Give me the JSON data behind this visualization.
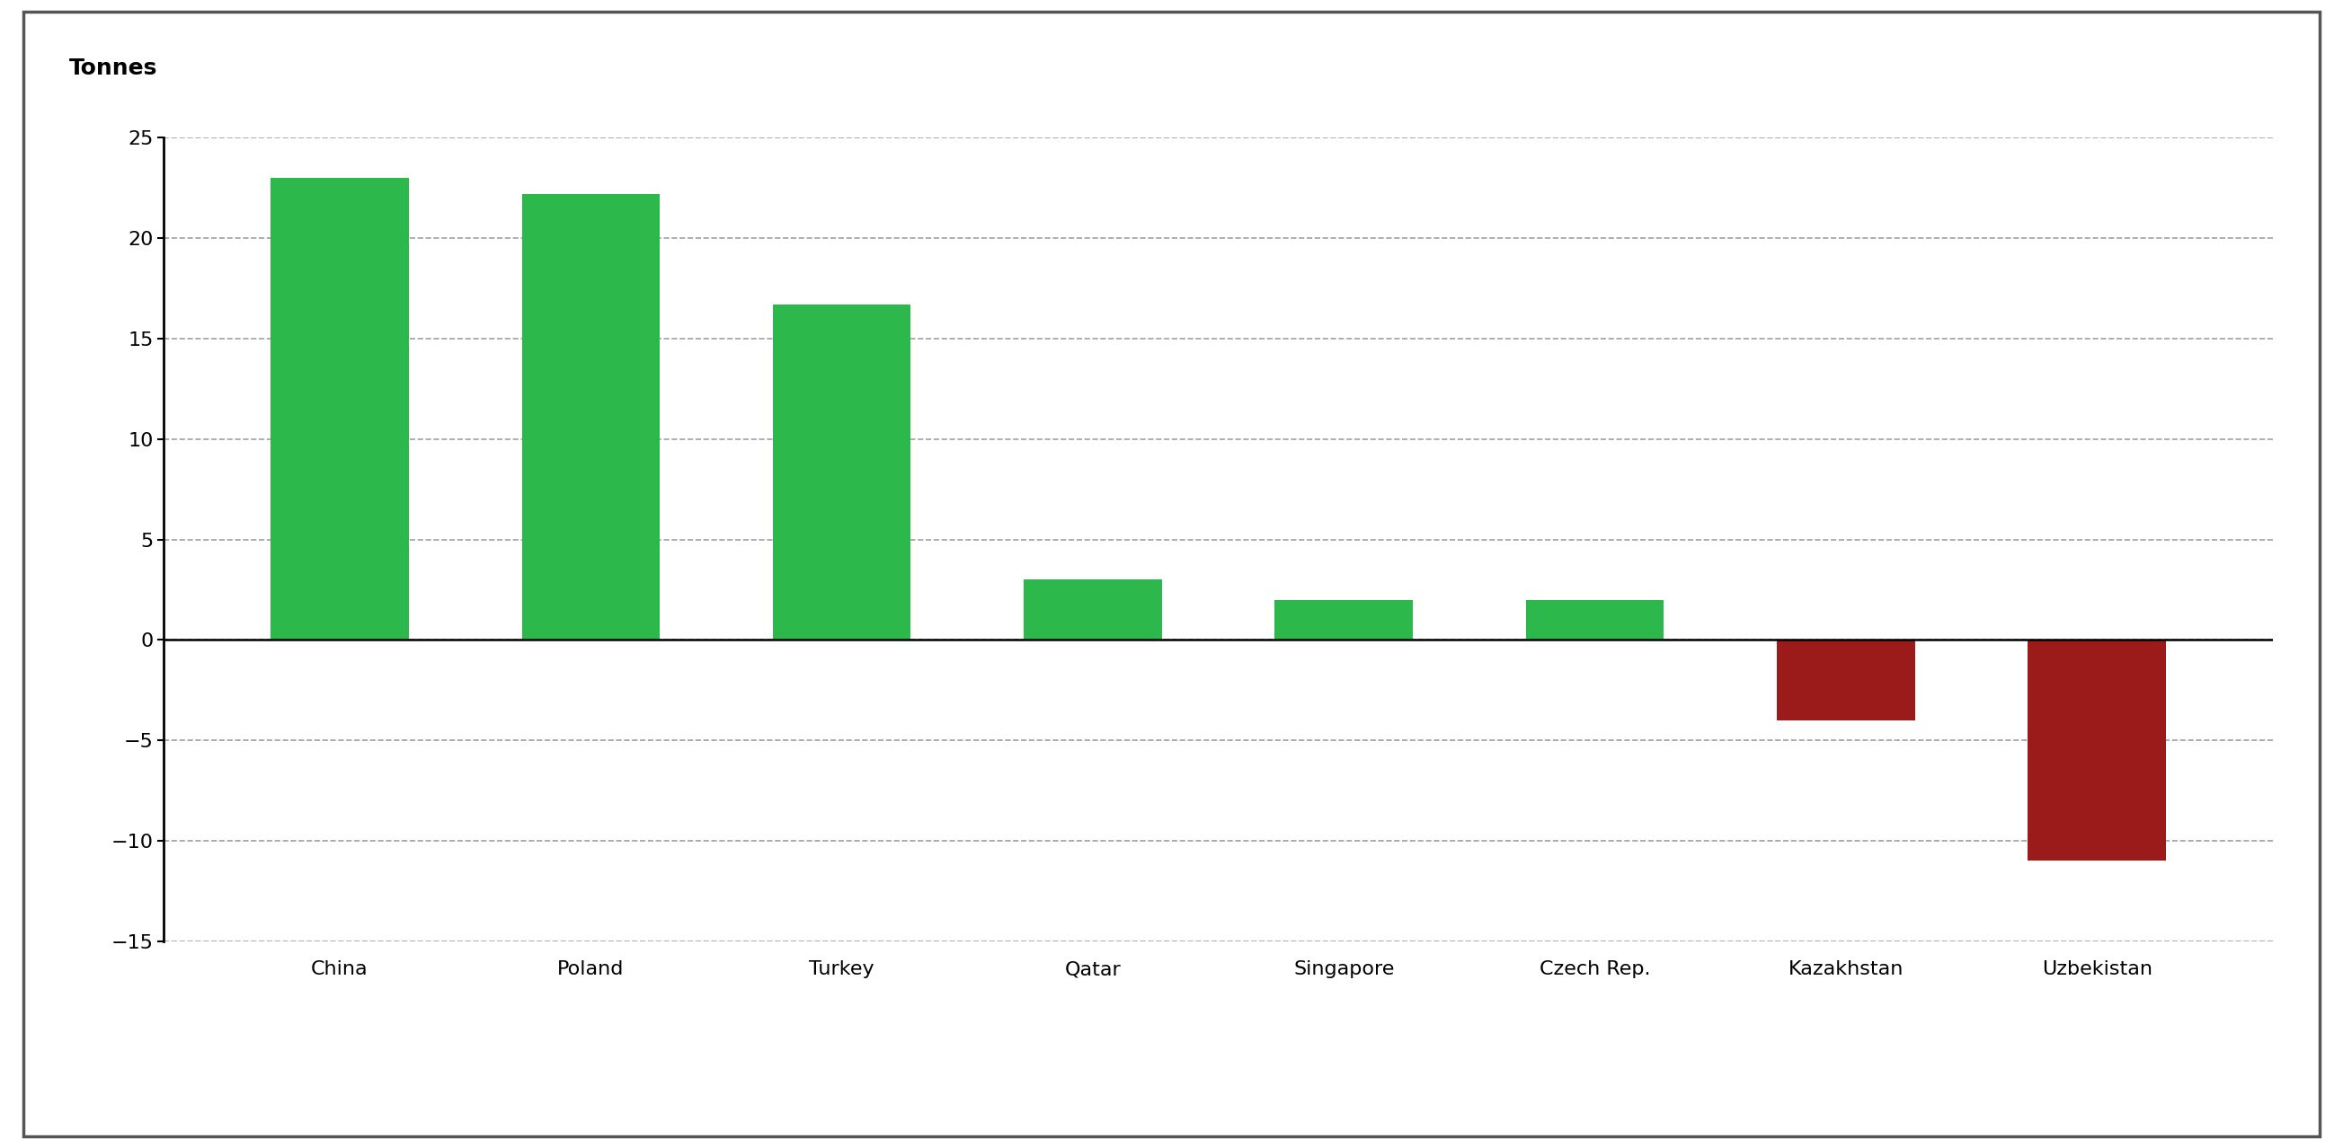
{
  "categories": [
    "China",
    "Poland",
    "Turkey",
    "Qatar",
    "Singapore",
    "Czech Rep.",
    "Kazakhstan",
    "Uzbekistan"
  ],
  "values": [
    23.0,
    22.2,
    16.7,
    3.0,
    2.0,
    2.0,
    -4.0,
    -11.0
  ],
  "bar_colors": [
    "#2db84b",
    "#2db84b",
    "#2db84b",
    "#2db84b",
    "#2db84b",
    "#2db84b",
    "#9b1b1b",
    "#9b1b1b"
  ],
  "tonnes_label": "Tonnes",
  "ylim": [
    -15,
    25
  ],
  "yticks": [
    -15,
    -10,
    -5,
    0,
    5,
    10,
    15,
    20,
    25
  ],
  "background_color": "#ffffff",
  "label_fontsize": 18,
  "tick_fontsize": 16,
  "xtick_fontsize": 16,
  "bar_width": 0.55,
  "grid_color": "#888888",
  "spine_color": "#000000",
  "border_color": "#555555"
}
